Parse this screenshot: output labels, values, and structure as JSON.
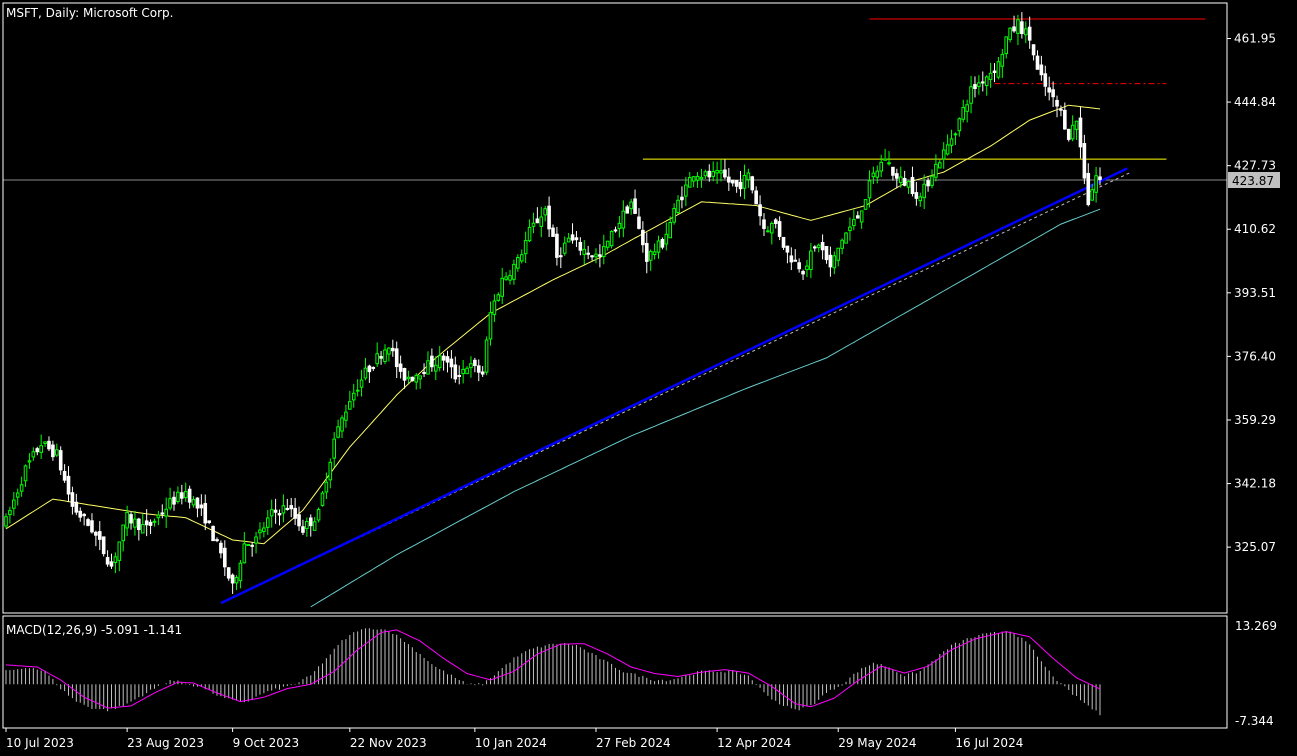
{
  "header": {
    "title": "MSFT, Daily:  Microsoft Corp."
  },
  "indicator": {
    "label": "MACD(12,26,9) -5.091 -1.141",
    "top": "13.269",
    "bottom": "-7.344"
  },
  "colors": {
    "background": "#000000",
    "axis": "#ffffff",
    "bull": "#00ff00",
    "bear": "#ffffff",
    "ma_short": "#ffff66",
    "ma_long": "#66cccc",
    "trendline": "#0000ff",
    "resistance": "#ffff00",
    "red_line": "#ff0000",
    "macd_signal": "#ff00ff",
    "macd_hist": "#c0c0c0",
    "price_tag_bg": "#c0c0c0"
  },
  "chart_data": {
    "type": "candlestick",
    "title": "MSFT, Daily:  Microsoft Corp.",
    "current_price": 423.87,
    "ylim": [
      309,
      470
    ],
    "y_ticks": [
      "461.95",
      "444.84",
      "427.73",
      "410.62",
      "393.51",
      "376.40",
      "359.29",
      "342.18",
      "325.07"
    ],
    "x_ticks": [
      "10 Jul 2023",
      "23 Aug 2023",
      "9 Oct 2023",
      "22 Nov 2023",
      "10 Jan 2024",
      "27 Feb 2024",
      "12 Apr 2024",
      "29 May 2024",
      "16 Jul 2024"
    ],
    "price_anchors": [
      [
        0,
        332
      ],
      [
        5,
        346
      ],
      [
        9,
        353
      ],
      [
        13,
        350
      ],
      [
        17,
        336
      ],
      [
        22,
        330
      ],
      [
        27,
        320
      ],
      [
        31,
        333
      ],
      [
        36,
        330
      ],
      [
        42,
        337
      ],
      [
        46,
        340
      ],
      [
        51,
        333
      ],
      [
        55,
        323
      ],
      [
        58,
        314
      ],
      [
        61,
        326
      ],
      [
        64,
        327
      ],
      [
        68,
        334
      ],
      [
        72,
        336
      ],
      [
        76,
        330
      ],
      [
        80,
        334
      ],
      [
        84,
        354
      ],
      [
        88,
        365
      ],
      [
        92,
        372
      ],
      [
        95,
        376
      ],
      [
        98,
        380
      ],
      [
        101,
        371
      ],
      [
        104,
        371
      ],
      [
        108,
        374
      ],
      [
        112,
        376
      ],
      [
        115,
        371
      ],
      [
        118,
        374
      ],
      [
        122,
        372
      ],
      [
        124,
        388
      ],
      [
        127,
        397
      ],
      [
        131,
        402
      ],
      [
        134,
        410
      ],
      [
        138,
        416
      ],
      [
        141,
        403
      ],
      [
        144,
        408
      ],
      [
        148,
        405
      ],
      [
        152,
        403
      ],
      [
        156,
        411
      ],
      [
        160,
        418
      ],
      [
        164,
        403
      ],
      [
        168,
        407
      ],
      [
        172,
        418
      ],
      [
        176,
        426
      ],
      [
        179,
        425
      ],
      [
        183,
        425
      ],
      [
        187,
        422
      ],
      [
        190,
        425
      ],
      [
        194,
        411
      ],
      [
        197,
        412
      ],
      [
        200,
        404
      ],
      [
        204,
        400
      ],
      [
        208,
        407
      ],
      [
        211,
        400
      ],
      [
        214,
        408
      ],
      [
        218,
        414
      ],
      [
        222,
        425
      ],
      [
        225,
        430
      ],
      [
        228,
        424
      ],
      [
        231,
        423
      ],
      [
        234,
        419
      ],
      [
        237,
        426
      ],
      [
        241,
        433
      ],
      [
        244,
        440
      ],
      [
        247,
        448
      ],
      [
        250,
        451
      ],
      [
        254,
        455
      ],
      [
        256,
        462
      ],
      [
        259,
        466
      ],
      [
        262,
        462
      ],
      [
        264,
        453
      ],
      [
        267,
        447
      ],
      [
        270,
        442
      ],
      [
        272,
        436
      ],
      [
        274,
        440
      ],
      [
        277,
        418
      ],
      [
        279,
        425
      ],
      [
        280,
        423.87
      ]
    ],
    "ma_short_anchors": [
      [
        0,
        330
      ],
      [
        12,
        338
      ],
      [
        24,
        336
      ],
      [
        36,
        334
      ],
      [
        46,
        333
      ],
      [
        58,
        327
      ],
      [
        66,
        326
      ],
      [
        76,
        335
      ],
      [
        88,
        352
      ],
      [
        100,
        366
      ],
      [
        110,
        376
      ],
      [
        124,
        388
      ],
      [
        140,
        397
      ],
      [
        152,
        403
      ],
      [
        164,
        410
      ],
      [
        178,
        418
      ],
      [
        192,
        417
      ],
      [
        206,
        413
      ],
      [
        220,
        417
      ],
      [
        230,
        423
      ],
      [
        240,
        426
      ],
      [
        252,
        433
      ],
      [
        262,
        440
      ],
      [
        272,
        444
      ],
      [
        280,
        443
      ]
    ],
    "ma_long_anchors": [
      [
        78,
        309
      ],
      [
        100,
        323
      ],
      [
        130,
        340
      ],
      [
        160,
        355
      ],
      [
        190,
        368
      ],
      [
        210,
        376
      ],
      [
        225,
        385
      ],
      [
        240,
        394
      ],
      [
        255,
        403
      ],
      [
        270,
        412
      ],
      [
        280,
        416
      ]
    ],
    "trendline": {
      "p1": [
        55,
        310
      ],
      "p2": [
        287,
        427
      ],
      "color": "blue"
    },
    "dotted_trend": {
      "p1": [
        55,
        310
      ],
      "p2": [
        288,
        426
      ]
    },
    "resistance_yellow": {
      "x1": 163,
      "x2": 297,
      "y": 429.5
    },
    "ma_long_value_label": "",
    "red_top": {
      "x1": 221,
      "x2": 307,
      "y": 467.2
    },
    "red_dash": {
      "x1": 253,
      "x2": 297,
      "y": 449.8
    },
    "macd": {
      "ylim": [
        -7.344,
        13.269
      ],
      "hist_anchors": [
        [
          0,
          3
        ],
        [
          6,
          4
        ],
        [
          10,
          3
        ],
        [
          14,
          -1
        ],
        [
          18,
          -4
        ],
        [
          22,
          -5.5
        ],
        [
          26,
          -6
        ],
        [
          30,
          -5
        ],
        [
          34,
          -3
        ],
        [
          38,
          -1
        ],
        [
          42,
          1
        ],
        [
          47,
          0
        ],
        [
          51,
          -1
        ],
        [
          55,
          -3
        ],
        [
          59,
          -4
        ],
        [
          62,
          -4
        ],
        [
          66,
          -2
        ],
        [
          70,
          -1
        ],
        [
          74,
          0
        ],
        [
          78,
          2
        ],
        [
          82,
          6
        ],
        [
          86,
          10
        ],
        [
          90,
          12.5
        ],
        [
          94,
          13
        ],
        [
          98,
          12.5
        ],
        [
          102,
          10
        ],
        [
          106,
          7
        ],
        [
          110,
          4
        ],
        [
          114,
          2
        ],
        [
          118,
          0
        ],
        [
          122,
          0
        ],
        [
          126,
          3
        ],
        [
          130,
          6
        ],
        [
          134,
          8
        ],
        [
          138,
          9
        ],
        [
          142,
          9.5
        ],
        [
          146,
          9
        ],
        [
          150,
          7
        ],
        [
          154,
          5
        ],
        [
          158,
          3
        ],
        [
          162,
          2
        ],
        [
          166,
          1
        ],
        [
          170,
          1
        ],
        [
          174,
          2
        ],
        [
          178,
          3
        ],
        [
          182,
          3
        ],
        [
          186,
          3
        ],
        [
          190,
          2
        ],
        [
          194,
          -2
        ],
        [
          198,
          -4.5
        ],
        [
          202,
          -6
        ],
        [
          206,
          -5
        ],
        [
          210,
          -2
        ],
        [
          214,
          0
        ],
        [
          218,
          3
        ],
        [
          222,
          5
        ],
        [
          226,
          4
        ],
        [
          230,
          2
        ],
        [
          234,
          3
        ],
        [
          238,
          6
        ],
        [
          242,
          9
        ],
        [
          246,
          10.5
        ],
        [
          250,
          11.5
        ],
        [
          254,
          12
        ],
        [
          256,
          12.5
        ],
        [
          258,
          12
        ],
        [
          262,
          9
        ],
        [
          266,
          4
        ],
        [
          270,
          0
        ],
        [
          274,
          -3
        ],
        [
          277,
          -5
        ],
        [
          280,
          -7
        ]
      ],
      "signal_anchors": [
        [
          0,
          4.5
        ],
        [
          8,
          4
        ],
        [
          14,
          1
        ],
        [
          20,
          -3
        ],
        [
          26,
          -5.5
        ],
        [
          32,
          -5
        ],
        [
          38,
          -2
        ],
        [
          44,
          0.5
        ],
        [
          48,
          0.3
        ],
        [
          54,
          -2
        ],
        [
          60,
          -4
        ],
        [
          66,
          -3
        ],
        [
          72,
          -1
        ],
        [
          78,
          0
        ],
        [
          84,
          3
        ],
        [
          90,
          8
        ],
        [
          96,
          12
        ],
        [
          100,
          12.6
        ],
        [
          106,
          10
        ],
        [
          112,
          6
        ],
        [
          118,
          2.5
        ],
        [
          124,
          1
        ],
        [
          130,
          3
        ],
        [
          136,
          7
        ],
        [
          142,
          9.3
        ],
        [
          148,
          9.4
        ],
        [
          154,
          7
        ],
        [
          160,
          4
        ],
        [
          166,
          2.5
        ],
        [
          172,
          1.8
        ],
        [
          178,
          2.8
        ],
        [
          184,
          3.4
        ],
        [
          190,
          2.6
        ],
        [
          196,
          -0.5
        ],
        [
          202,
          -4.5
        ],
        [
          206,
          -5.2
        ],
        [
          212,
          -3.2
        ],
        [
          218,
          0.8
        ],
        [
          224,
          4.2
        ],
        [
          230,
          2.6
        ],
        [
          236,
          4.2
        ],
        [
          242,
          8
        ],
        [
          248,
          10.5
        ],
        [
          256,
          12.2
        ],
        [
          262,
          11
        ],
        [
          268,
          6
        ],
        [
          274,
          1.5
        ],
        [
          280,
          -1.1
        ]
      ]
    }
  }
}
